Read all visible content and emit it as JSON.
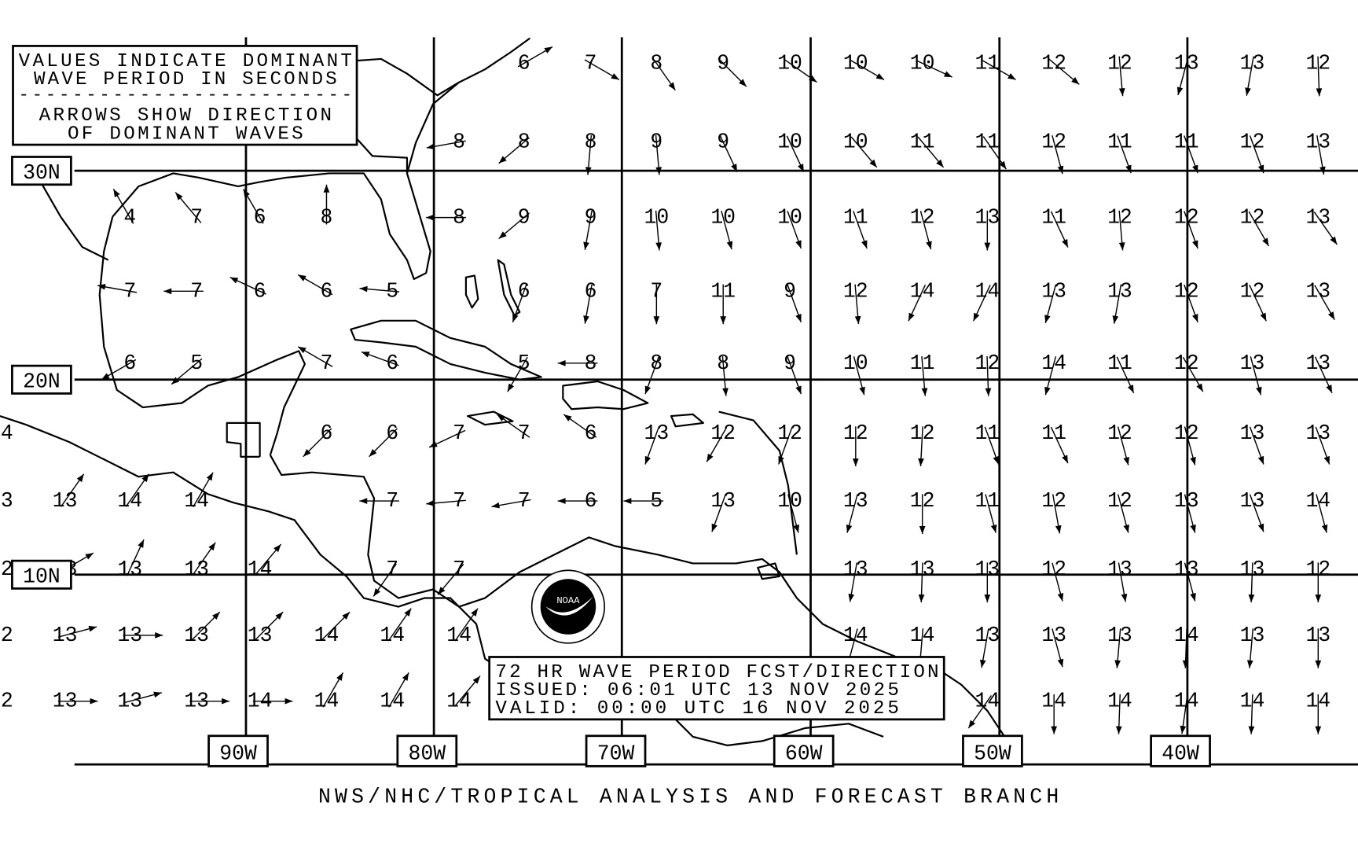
{
  "legend": {
    "line1": "VALUES INDICATE DOMINANT",
    "line2": "WAVE PERIOD IN SECONDS",
    "divider": "-------------------------",
    "line3": "ARROWS SHOW DIRECTION",
    "line4": "OF DOMINANT WAVES"
  },
  "latitude_labels": [
    "30N",
    "20N",
    "10N"
  ],
  "longitude_labels": [
    "90W",
    "80W",
    "70W",
    "60W",
    "50W",
    "40W"
  ],
  "info": {
    "title": "72 HR WAVE PERIOD FCST/DIRECTION",
    "issued": "ISSUED:  06:01 UTC 13 NOV 2025",
    "valid": "VALID:   00:00 UTC 16 NOV 2025"
  },
  "logo_text": "NOAA",
  "logo_ring": "NATIONAL OCEANIC AND ATMOSPHERIC ADMINISTRATION - U.S. DEPARTMENT OF COMMERCE",
  "footer": "NWS/NHC/TROPICAL ANALYSIS AND FORECAST BRANCH",
  "arrow_direction_units": "degrees toward which waves travel (0 = north)",
  "chart_data": {
    "type": "table",
    "grid_rows": [
      [
        null,
        null,
        null,
        null,
        null,
        null,
        null,
        null,
        [
          6,
          60
        ],
        [
          7,
          120
        ],
        [
          8,
          145
        ],
        [
          9,
          135
        ],
        [
          10,
          125
        ],
        [
          10,
          120
        ],
        [
          10,
          115
        ],
        [
          11,
          120
        ],
        [
          12,
          130
        ],
        [
          12,
          175
        ],
        [
          13,
          195
        ],
        [
          13,
          190
        ],
        [
          12,
          178
        ]
      ],
      [
        null,
        null,
        null,
        null,
        null,
        null,
        null,
        [
          8,
          260
        ],
        [
          8,
          230
        ],
        [
          8,
          185
        ],
        [
          9,
          175
        ],
        [
          9,
          155
        ],
        [
          10,
          155
        ],
        [
          10,
          140
        ],
        [
          11,
          140
        ],
        [
          11,
          145
        ],
        [
          12,
          165
        ],
        [
          11,
          160
        ],
        [
          11,
          160
        ],
        [
          12,
          160
        ],
        [
          13,
          170
        ]
      ],
      [
        null,
        null,
        [
          4,
          330
        ],
        [
          7,
          320
        ],
        [
          6,
          330
        ],
        [
          8,
          0
        ],
        null,
        [
          8,
          270
        ],
        [
          9,
          230
        ],
        [
          9,
          190
        ],
        [
          10,
          175
        ],
        [
          10,
          165
        ],
        [
          10,
          160
        ],
        [
          11,
          160
        ],
        [
          12,
          165
        ],
        [
          13,
          180
        ],
        [
          11,
          155
        ],
        [
          12,
          175
        ],
        [
          12,
          160
        ],
        [
          12,
          150
        ],
        [
          13,
          145
        ]
      ],
      [
        null,
        null,
        [
          7,
          280
        ],
        [
          7,
          270
        ],
        [
          6,
          295
        ],
        [
          6,
          300
        ],
        [
          5,
          275
        ],
        null,
        [
          6,
          200
        ],
        [
          6,
          190
        ],
        [
          7,
          180
        ],
        [
          11,
          180
        ],
        [
          9,
          160
        ],
        [
          12,
          175
        ],
        [
          14,
          205
        ],
        [
          14,
          205
        ],
        [
          13,
          195
        ],
        [
          13,
          190
        ],
        [
          12,
          160
        ],
        [
          12,
          155
        ],
        [
          13,
          150
        ]
      ],
      [
        null,
        null,
        [
          6,
          240
        ],
        [
          5,
          230
        ],
        null,
        [
          7,
          300
        ],
        [
          6,
          290
        ],
        null,
        [
          5,
          210
        ],
        [
          8,
          270
        ],
        [
          8,
          200
        ],
        [
          8,
          175
        ],
        [
          9,
          160
        ],
        [
          10,
          165
        ],
        [
          11,
          175
        ],
        [
          12,
          178
        ],
        [
          14,
          195
        ],
        [
          11,
          155
        ],
        [
          12,
          150
        ],
        [
          13,
          165
        ],
        [
          13,
          155
        ]
      ],
      [
        [
          4,
          null
        ],
        null,
        null,
        null,
        null,
        [
          6,
          225
        ],
        [
          6,
          225
        ],
        [
          7,
          245
        ],
        [
          7,
          305
        ],
        [
          6,
          305
        ],
        [
          13,
          200
        ],
        [
          12,
          210
        ],
        [
          12,
          200
        ],
        [
          12,
          180
        ],
        [
          12,
          183
        ],
        [
          11,
          160
        ],
        [
          11,
          155
        ],
        [
          12,
          165
        ],
        [
          12,
          165
        ],
        [
          13,
          160
        ],
        [
          13,
          160
        ]
      ],
      [
        [
          3,
          null
        ],
        [
          13,
          35
        ],
        [
          14,
          35
        ],
        [
          14,
          30
        ],
        null,
        null,
        [
          7,
          270
        ],
        [
          7,
          265
        ],
        [
          7,
          260
        ],
        [
          6,
          270
        ],
        [
          5,
          270
        ],
        [
          13,
          200
        ],
        [
          10,
          165
        ],
        [
          13,
          195
        ],
        [
          12,
          180
        ],
        [
          11,
          165
        ],
        [
          12,
          170
        ],
        [
          12,
          165
        ],
        [
          13,
          165
        ],
        [
          13,
          160
        ],
        [
          14,
          165
        ]
      ],
      [
        [
          2,
          null
        ],
        [
          13,
          60
        ],
        [
          13,
          25
        ],
        [
          13,
          35
        ],
        [
          14,
          40
        ],
        null,
        [
          7,
          215
        ],
        [
          7,
          220
        ],
        null,
        null,
        null,
        null,
        null,
        [
          13,
          190
        ],
        [
          13,
          182
        ],
        [
          13,
          180
        ],
        [
          12,
          165
        ],
        [
          13,
          170
        ],
        [
          13,
          165
        ],
        [
          13,
          182
        ],
        [
          12,
          180
        ]
      ],
      [
        [
          2,
          null
        ],
        [
          13,
          75
        ],
        [
          13,
          90
        ],
        [
          13,
          45
        ],
        [
          13,
          45
        ],
        [
          14,
          45
        ],
        [
          14,
          35
        ],
        [
          14,
          35
        ],
        null,
        null,
        null,
        null,
        null,
        [
          14,
          195
        ],
        [
          14,
          185
        ],
        [
          13,
          190
        ],
        [
          13,
          165
        ],
        [
          13,
          185
        ],
        [
          14,
          182
        ],
        [
          13,
          185
        ],
        [
          13,
          180
        ]
      ],
      [
        [
          2,
          null
        ],
        [
          13,
          90
        ],
        [
          13,
          75
        ],
        [
          13,
          90
        ],
        [
          14,
          90
        ],
        [
          14,
          30
        ],
        [
          14,
          30
        ],
        [
          14,
          40
        ],
        null,
        null,
        null,
        null,
        null,
        null,
        null,
        [
          14,
          215
        ],
        [
          14,
          180
        ],
        [
          14,
          182
        ],
        [
          14,
          188
        ],
        [
          14,
          182
        ],
        [
          14,
          180
        ]
      ]
    ]
  }
}
